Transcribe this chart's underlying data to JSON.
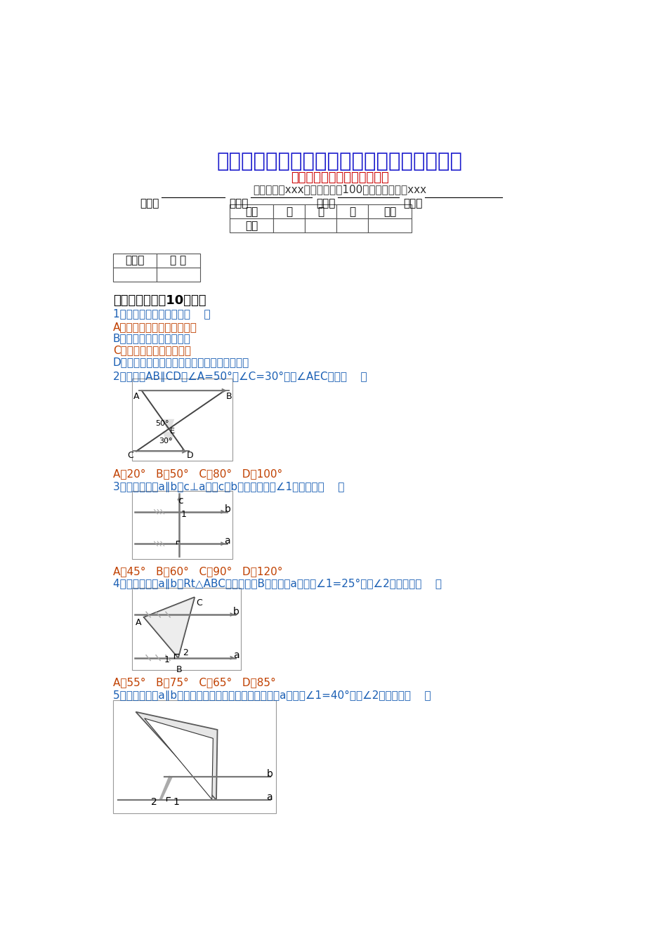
{
  "title": "最新人教版七年级数学下册测试题及答案全套",
  "subtitle": "《相交线与平行线》单元检测",
  "exam_info": "考试范围：xxx；考试时间：100分钟；命题人：xxx",
  "table_headers": [
    "题号",
    "一",
    "二",
    "三",
    "总分"
  ],
  "table_row": [
    "得分",
    "",
    "",
    "",
    ""
  ],
  "grader_headers": [
    "评卷人",
    "得 分"
  ],
  "section1": "一．选择题（共10小题）",
  "q1": "1．下列命题中正确的是（    ）",
  "q1_A": "A．长度相等的两条弧是等弧",
  "q1_B": "B．过三点可以确定一个圆",
  "q1_C": "C．平分弦的直径垂直于弦",
  "q1_D": "D．三角形的外心到三角形三个顶点的距离相等",
  "q2": "2．如图，AB∥CD，∠A=50°，∠C=30°，则∠AEC等于（    ）",
  "q2_ans": "A．20°   B．50°   C．80°   D．100°",
  "q3": "3．如图，直线a∥b，c⊥a，则c与b相交所形成的∠1的度数为（    ）",
  "q3_ans": "A．45°   B．60°   C．90°   D．120°",
  "q4": "4．如图，直线a∥b，Rt△ABC的直角顶点B落在直线a上，若∠1=25°，则∠2的大小为（    ）",
  "q4_ans": "A．55°   B．75°   C．65°   D．85°",
  "q5": "5．如图，已知a∥b，小华把三角板的直角顶点放在直线a上．若∠1=40°，则∠2的度数为（    ）",
  "bg_color": "#ffffff",
  "title_color": "#1a1acc",
  "subtitle_color": "#cc0000",
  "blue_color": "#1a5fb4",
  "orange_color": "#c04000",
  "black_color": "#000000",
  "gray_color": "#888888",
  "line_color": "#555555"
}
